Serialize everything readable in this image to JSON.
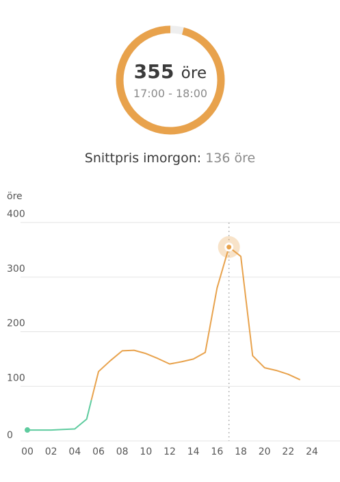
{
  "current": {
    "price": "355",
    "unit": "öre",
    "time_range": "17:00 - 18:00",
    "fraction_of_max": 0.96
  },
  "average": {
    "label": "Snittpris imorgon:",
    "value": "136 öre"
  },
  "colors": {
    "accent": "#e8a24c",
    "ring_track": "#eeeeee",
    "cheap": "#5dcb9e",
    "grid": "#e3e3e3",
    "marker": "#b8b8b8"
  },
  "chart_data": {
    "type": "line",
    "ylabel": "öre",
    "ylim": [
      0,
      400
    ],
    "yticks": [
      "0",
      "100",
      "200",
      "300",
      "400"
    ],
    "xticks": [
      "00",
      "02",
      "04",
      "06",
      "08",
      "10",
      "12",
      "14",
      "16",
      "18",
      "20",
      "22",
      "24"
    ],
    "xlim": [
      0,
      24
    ],
    "highlight_hour": 17,
    "cheap_threshold": 75,
    "x": [
      0,
      1,
      2,
      3,
      4,
      5,
      6,
      7,
      8,
      9,
      10,
      11,
      12,
      13,
      14,
      15,
      16,
      17,
      18,
      19,
      20,
      21,
      22,
      23
    ],
    "values": [
      20,
      20,
      20,
      21,
      22,
      40,
      127,
      147,
      165,
      166,
      160,
      151,
      141,
      145,
      150,
      162,
      280,
      355,
      338,
      156,
      134,
      129,
      122,
      112
    ]
  }
}
